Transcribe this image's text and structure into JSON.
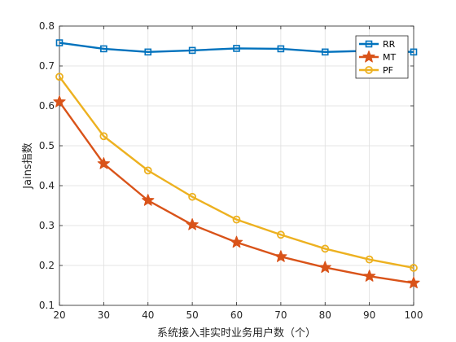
{
  "chart_data": {
    "type": "line",
    "xlabel": "系统接入非实时业务用户数（个）",
    "ylabel": "Jains指数",
    "x": [
      20,
      30,
      40,
      50,
      60,
      70,
      80,
      90,
      100
    ],
    "xlim": [
      20,
      100
    ],
    "ylim": [
      0.1,
      0.8
    ],
    "xticks": [
      20,
      30,
      40,
      50,
      60,
      70,
      80,
      90,
      100
    ],
    "yticks": [
      0.1,
      0.2,
      0.3,
      0.4,
      0.5,
      0.6,
      0.7,
      0.8
    ],
    "grid": true,
    "legend_position": "top-right",
    "series": [
      {
        "name": "RR",
        "color": "#0072BD",
        "marker": "square",
        "values": [
          0.758,
          0.743,
          0.735,
          0.739,
          0.744,
          0.743,
          0.735,
          0.738,
          0.735
        ]
      },
      {
        "name": "MT",
        "color": "#D95319",
        "marker": "star",
        "values": [
          0.61,
          0.455,
          0.363,
          0.302,
          0.258,
          0.222,
          0.195,
          0.173,
          0.156
        ]
      },
      {
        "name": "PF",
        "color": "#EDB120",
        "marker": "circle",
        "values": [
          0.673,
          0.524,
          0.438,
          0.372,
          0.315,
          0.277,
          0.242,
          0.215,
          0.194
        ]
      }
    ]
  }
}
